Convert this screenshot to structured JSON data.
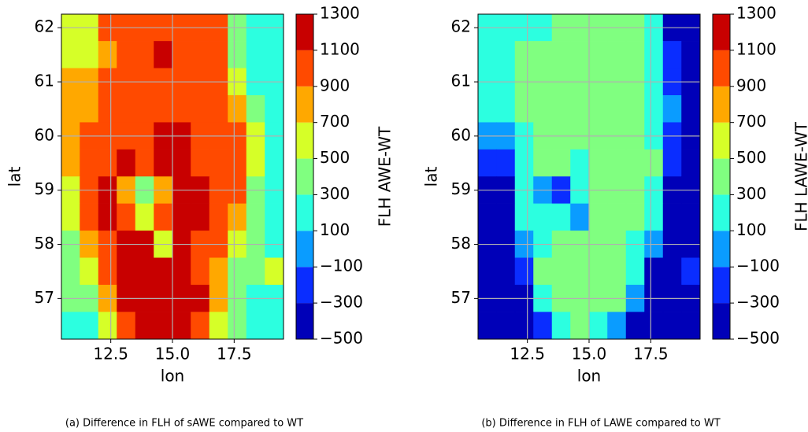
{
  "chart_data": [
    {
      "type": "contour",
      "caption": "(a) Difference in FLH of sAWE compared to WT",
      "xlabel": "lon",
      "ylabel": "lat",
      "colorbar_label": "FLH AWE-WT",
      "xlim": [
        10.5,
        19.5
      ],
      "ylim": [
        56.25,
        62.25
      ],
      "xticks": [
        12.5,
        {
          "value": 15,
          "label": "15.0"
        },
        17.5
      ],
      "yticks": [
        57,
        58,
        59,
        60,
        61,
        62
      ],
      "grid": true,
      "levels": [
        {
          "value": -500,
          "label": "−500"
        },
        {
          "value": -300,
          "label": "−300"
        },
        {
          "value": -100,
          "label": "−100"
        },
        100,
        300,
        500,
        700,
        900,
        1100,
        1300
      ],
      "colors": [
        "#0000b8",
        "#0a2dff",
        "#0a9cff",
        "#2cffe0",
        "#80ff80",
        "#d6ff28",
        "#ffa800",
        "#ff4a00",
        "#c80000"
      ],
      "x": [
        10.875,
        11.625,
        12.375,
        13.125,
        13.875,
        14.625,
        15.375,
        16.125,
        16.875,
        17.625,
        18.375,
        19.125
      ],
      "y": [
        62,
        61.5,
        61,
        60.5,
        60,
        59.5,
        59,
        58.5,
        58,
        57.5,
        57,
        56.5
      ],
      "z": [
        [
          600,
          600,
          1000,
          1000,
          1000,
          1000,
          1000,
          1000,
          1000,
          400,
          200,
          200
        ],
        [
          600,
          600,
          800,
          1000,
          1000,
          1200,
          1000,
          1000,
          1000,
          400,
          200,
          200
        ],
        [
          800,
          800,
          1000,
          1000,
          1000,
          1000,
          1000,
          1000,
          1000,
          600,
          200,
          200
        ],
        [
          800,
          800,
          1000,
          1000,
          1000,
          1000,
          1000,
          1000,
          1000,
          800,
          400,
          200
        ],
        [
          800,
          1000,
          1000,
          1000,
          1000,
          1200,
          1200,
          1000,
          1000,
          1000,
          600,
          200
        ],
        [
          800,
          1000,
          1000,
          1200,
          1000,
          1200,
          1200,
          1000,
          1000,
          1000,
          600,
          200
        ],
        [
          600,
          1000,
          1200,
          800,
          400,
          800,
          1200,
          1200,
          1000,
          1000,
          400,
          200
        ],
        [
          600,
          1000,
          1200,
          1000,
          600,
          1000,
          1200,
          1200,
          1000,
          800,
          400,
          200
        ],
        [
          400,
          800,
          1000,
          1200,
          1200,
          600,
          1200,
          1000,
          1000,
          600,
          400,
          200
        ],
        [
          400,
          600,
          1000,
          1200,
          1200,
          1200,
          1200,
          1000,
          800,
          400,
          400,
          600
        ],
        [
          400,
          400,
          800,
          1200,
          1200,
          1200,
          1200,
          1200,
          800,
          400,
          200,
          200
        ],
        [
          200,
          200,
          600,
          1000,
          1200,
          1200,
          1200,
          1000,
          600,
          400,
          200,
          200
        ]
      ]
    },
    {
      "type": "contour",
      "caption": "(b) Difference in FLH of LAWE compared to WT",
      "xlabel": "lon",
      "ylabel": "lat",
      "colorbar_label": "FLH LAWE-WT",
      "xlim": [
        10.5,
        19.5
      ],
      "ylim": [
        56.25,
        62.25
      ],
      "xticks": [
        12.5,
        {
          "value": 15,
          "label": "15.0"
        },
        17.5
      ],
      "yticks": [
        57,
        58,
        59,
        60,
        61,
        62
      ],
      "grid": true,
      "levels": [
        {
          "value": -500,
          "label": "−500"
        },
        {
          "value": -300,
          "label": "−300"
        },
        {
          "value": -100,
          "label": "−100"
        },
        100,
        300,
        500,
        700,
        900,
        1100,
        1300
      ],
      "colors": [
        "#0000b8",
        "#0a2dff",
        "#0a9cff",
        "#2cffe0",
        "#80ff80",
        "#d6ff28",
        "#ffa800",
        "#ff4a00",
        "#c80000"
      ],
      "x": [
        10.875,
        11.625,
        12.375,
        13.125,
        13.875,
        14.625,
        15.375,
        16.125,
        16.875,
        17.625,
        18.375,
        19.125
      ],
      "y": [
        62,
        61.5,
        61,
        60.5,
        60,
        59.5,
        59,
        58.5,
        58,
        57.5,
        57,
        56.5
      ],
      "z": [
        [
          200,
          200,
          200,
          200,
          400,
          400,
          400,
          400,
          400,
          200,
          -400,
          -400
        ],
        [
          200,
          200,
          400,
          400,
          400,
          400,
          400,
          400,
          400,
          200,
          -200,
          -400
        ],
        [
          200,
          200,
          400,
          400,
          400,
          400,
          400,
          400,
          400,
          200,
          -200,
          -400
        ],
        [
          200,
          200,
          400,
          400,
          400,
          400,
          400,
          400,
          400,
          200,
          0,
          -400
        ],
        [
          0,
          0,
          200,
          400,
          400,
          400,
          400,
          400,
          400,
          200,
          -200,
          -400
        ],
        [
          -200,
          -200,
          200,
          400,
          400,
          200,
          400,
          400,
          400,
          400,
          -200,
          -400
        ],
        [
          -400,
          -400,
          200,
          0,
          -200,
          200,
          400,
          400,
          400,
          200,
          -400,
          -400
        ],
        [
          -400,
          -400,
          200,
          200,
          200,
          0,
          400,
          400,
          400,
          200,
          -400,
          -400
        ],
        [
          -400,
          -400,
          0,
          200,
          400,
          400,
          400,
          400,
          200,
          0,
          -400,
          -400
        ],
        [
          -400,
          -400,
          -200,
          400,
          400,
          400,
          400,
          400,
          200,
          -400,
          -400,
          -200
        ],
        [
          -400,
          -400,
          -400,
          200,
          400,
          400,
          400,
          400,
          0,
          -400,
          -400,
          -400
        ],
        [
          -400,
          -400,
          -400,
          -200,
          200,
          400,
          200,
          0,
          -400,
          -400,
          -400,
          -400
        ]
      ]
    }
  ]
}
